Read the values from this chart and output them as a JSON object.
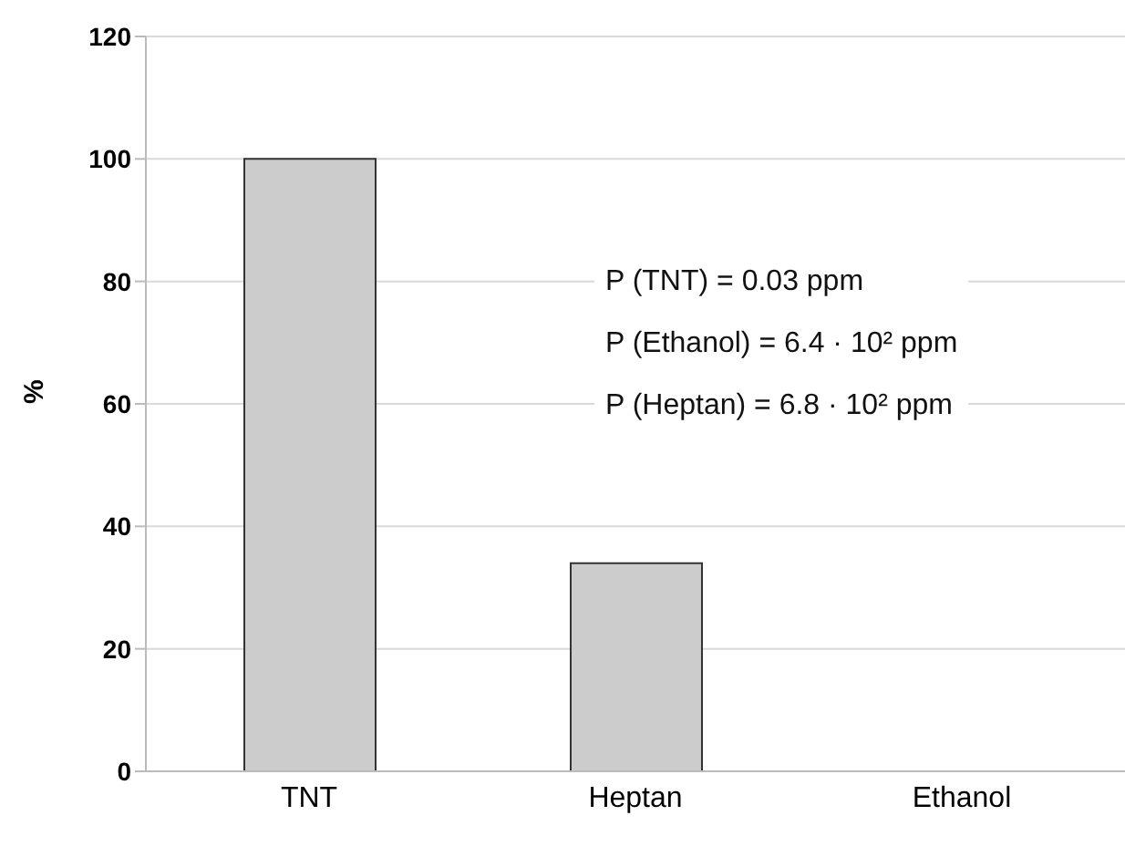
{
  "chart_data": {
    "type": "bar",
    "ylabel": "%",
    "categories": [
      "TNT",
      "Heptan",
      "Ethanol"
    ],
    "values": [
      100,
      34,
      0
    ],
    "color": "#cccccc",
    "ylim": [
      0,
      120
    ],
    "yticks": [
      0,
      20,
      40,
      60,
      80,
      100,
      120
    ],
    "grid": "y",
    "annotations": [
      "P (TNT) = 0.03 ppm",
      "P (Ethanol) = 6.4 · 10² ppm",
      "P (Heptan) = 6.8 · 10² ppm"
    ]
  }
}
